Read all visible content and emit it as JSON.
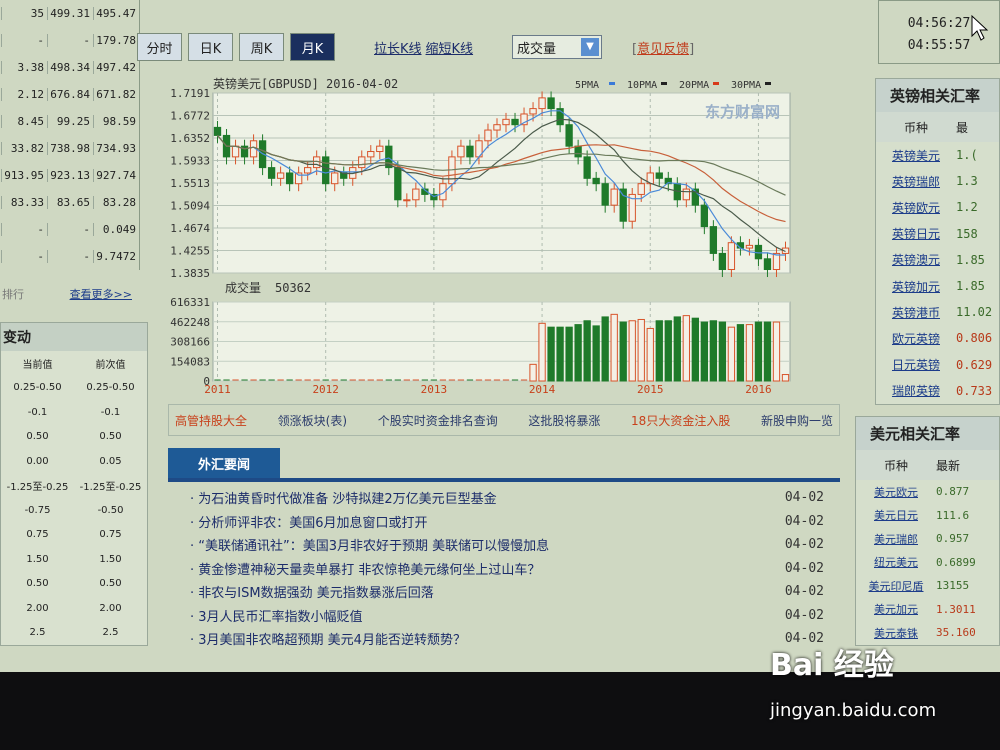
{
  "left_table": {
    "rows": [
      [
        "35",
        "499.31",
        "495.47"
      ],
      [
        "-",
        "-",
        "179.78"
      ],
      [
        "3.38",
        "498.34",
        "497.42"
      ],
      [
        "2.12",
        "676.84",
        "671.82"
      ],
      [
        "8.45",
        "99.25",
        "98.59"
      ],
      [
        "33.82",
        "738.98",
        "734.93"
      ],
      [
        "913.95",
        "923.13",
        "927.74"
      ],
      [
        "83.33",
        "83.65",
        "83.28"
      ],
      [
        "-",
        "-",
        "0.049"
      ],
      [
        "-",
        "-",
        "9.7472"
      ]
    ],
    "footer_label": "排行",
    "more_link": "查看更多>>"
  },
  "rate_changes": {
    "title": "变动",
    "headers": [
      "当前值",
      "前次值"
    ],
    "rows": [
      [
        "0.25-0.50",
        "0.25-0.50"
      ],
      [
        "-0.1",
        "-0.1"
      ],
      [
        "0.50",
        "0.50"
      ],
      [
        "0.00",
        "0.05"
      ],
      [
        "-1.25至-0.25",
        "-1.25至-0.25"
      ],
      [
        "-0.75",
        "-0.50"
      ],
      [
        "0.75",
        "0.75"
      ],
      [
        "1.50",
        "1.50"
      ],
      [
        "0.50",
        "0.50"
      ],
      [
        "2.00",
        "2.00"
      ],
      [
        "2.5",
        "2.5"
      ]
    ]
  },
  "toolbar": {
    "tabs": [
      "分时",
      "日K",
      "周K",
      "月K"
    ],
    "active_tab": "月K",
    "stretch": "拉长K线",
    "shrink": "缩短K线",
    "indicator_select": "成交量",
    "feedback": "意见反馈"
  },
  "chart_data": {
    "type": "candlestick",
    "title": "英镑美元[GBPUSD] 2016-04-02",
    "legend": [
      "5PMA",
      "10PMA",
      "20PMA",
      "30PMA"
    ],
    "legend_colors": [
      "#3a7ad8",
      "#222222",
      "#d83a1a",
      "#222222"
    ],
    "watermark": "东方财富网 eastmoney.com",
    "y_ticks": [
      "1.7191",
      "1.6772",
      "1.6352",
      "1.5933",
      "1.5513",
      "1.5094",
      "1.4674",
      "1.4255",
      "1.3835"
    ],
    "ylim": [
      1.3835,
      1.7191
    ],
    "x_ticks": [
      {
        "label": "2011",
        "index": 0
      },
      {
        "label": "2012",
        "index": 12
      },
      {
        "label": "2013",
        "index": 24
      },
      {
        "label": "2014",
        "index": 36
      },
      {
        "label": "2015",
        "index": 48
      },
      {
        "label": "2016",
        "index": 60
      }
    ],
    "first_open": 1.655,
    "closes": [
      1.64,
      1.6,
      1.62,
      1.6,
      1.63,
      1.58,
      1.56,
      1.57,
      1.55,
      1.57,
      1.58,
      1.6,
      1.55,
      1.57,
      1.56,
      1.58,
      1.6,
      1.61,
      1.62,
      1.58,
      1.52,
      1.52,
      1.54,
      1.53,
      1.52,
      1.55,
      1.6,
      1.62,
      1.6,
      1.63,
      1.65,
      1.66,
      1.67,
      1.66,
      1.68,
      1.69,
      1.71,
      1.69,
      1.66,
      1.62,
      1.6,
      1.56,
      1.55,
      1.51,
      1.54,
      1.48,
      1.53,
      1.55,
      1.57,
      1.56,
      1.55,
      1.52,
      1.54,
      1.51,
      1.47,
      1.42,
      1.39,
      1.44,
      1.43,
      1.435,
      1.41,
      1.39,
      1.42,
      1.43
    ],
    "volume_label": "成交量",
    "volume_current": "50362",
    "volume_ticks": [
      "616331",
      "462248",
      "308166",
      "154083",
      "0"
    ],
    "volume_ylim": [
      0,
      616331
    ],
    "volumes": [
      0,
      0,
      0,
      0,
      0,
      0,
      0,
      0,
      0,
      0,
      0,
      0,
      0,
      0,
      0,
      0,
      0,
      0,
      0,
      0,
      0,
      0,
      0,
      0,
      0,
      0,
      0,
      0,
      0,
      0,
      0,
      0,
      0,
      0,
      0,
      130000,
      450000,
      420000,
      420000,
      420000,
      440000,
      470000,
      430000,
      500000,
      520000,
      460000,
      470000,
      480000,
      410000,
      470000,
      470000,
      500000,
      510000,
      490000,
      460000,
      470000,
      460000,
      420000,
      440000,
      440000,
      460000,
      460000,
      460000,
      50362
    ]
  },
  "promo_links": [
    {
      "text": "高管持股大全",
      "color": "#c8401a"
    },
    {
      "text": "领涨板块(表)",
      "color": "#2c3c6c"
    },
    {
      "text": "个股实时资金排名查询",
      "color": "#2c3c6c"
    },
    {
      "text": "这批股将暴涨",
      "color": "#2c3c6c"
    },
    {
      "text": "18只大资金注入股",
      "color": "#c8401a"
    },
    {
      "text": "新股申购一览",
      "color": "#2c3c6c"
    }
  ],
  "news": {
    "tab": "外汇要闻",
    "items": [
      {
        "title": "为石油黄昏时代做准备 沙特拟建2万亿美元巨型基金",
        "date": "04-02"
      },
      {
        "title": "分析师评非农：美国6月加息窗口或打开",
        "date": "04-02"
      },
      {
        "title": "“美联储通讯社”：美国3月非农好于预期 美联储可以慢慢加息",
        "date": "04-02"
      },
      {
        "title": "黄金惨遭神秘天量卖单暴打 非农惊艳美元缘何坐上过山车？",
        "date": "04-02"
      },
      {
        "title": "非农与ISM数据强劲 美元指数暴涨后回落",
        "date": "04-02"
      },
      {
        "title": "3月人民币汇率指数小幅贬值",
        "date": "04-02"
      },
      {
        "title": "3月美国非农略超预期 美元4月能否逆转颓势？",
        "date": "04-02"
      }
    ]
  },
  "clock": {
    "time1": "04:56:27",
    "time2": "04:55:57"
  },
  "gbp_panel": {
    "title": "英镑相关汇率",
    "headers": [
      "币种",
      "最"
    ],
    "rows": [
      {
        "name": "英镑美元",
        "value": "1.(",
        "dir": "up"
      },
      {
        "name": "英镑瑞郎",
        "value": "1.3",
        "dir": "up"
      },
      {
        "name": "英镑欧元",
        "value": "1.2",
        "dir": "up"
      },
      {
        "name": "英镑日元",
        "value": "158",
        "dir": "up"
      },
      {
        "name": "英镑澳元",
        "value": "1.85",
        "dir": "up"
      },
      {
        "name": "英镑加元",
        "value": "1.85",
        "dir": "up"
      },
      {
        "name": "英镑港币",
        "value": "11.02",
        "dir": "up"
      },
      {
        "name": "欧元英镑",
        "value": "0.806",
        "dir": "down"
      },
      {
        "name": "日元英镑",
        "value": "0.629",
        "dir": "down"
      },
      {
        "name": "瑞郎英镑",
        "value": "0.733",
        "dir": "down"
      }
    ]
  },
  "usd_panel": {
    "title": "美元相关汇率",
    "headers": [
      "币种",
      "最新"
    ],
    "rows": [
      {
        "name": "美元欧元",
        "value": "0.877",
        "dir": "up"
      },
      {
        "name": "美元日元",
        "value": "111.6",
        "dir": "up"
      },
      {
        "name": "美元瑞郎",
        "value": "0.957",
        "dir": "up"
      },
      {
        "name": "纽元美元",
        "value": "0.6899",
        "dir": "up"
      },
      {
        "name": "美元印尼盾",
        "value": "13155",
        "dir": "up"
      },
      {
        "name": "美元加元",
        "value": "1.3011",
        "dir": "down"
      },
      {
        "name": "美元泰铢",
        "value": "35.160",
        "dir": "down"
      }
    ]
  },
  "watermark": {
    "brand": "Bai 经验",
    "url": "jingyan.baidu.com"
  }
}
